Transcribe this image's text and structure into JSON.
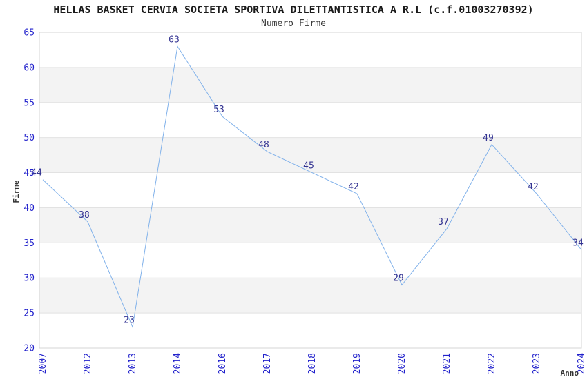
{
  "header": {
    "title": "HELLAS BASKET CERVIA SOCIETA SPORTIVA DILETTANTISTICA A R.L (c.f.01003270392)",
    "subtitle": "Numero Firme"
  },
  "axes": {
    "y_label": "Firme",
    "x_label": "Anno"
  },
  "chart_data": {
    "type": "line",
    "title": "HELLAS BASKET CERVIA SOCIETA SPORTIVA DILETTANTISTICA A R.L (c.f.01003270392)",
    "subtitle": "Numero Firme",
    "xlabel": "Anno",
    "ylabel": "Firme",
    "categories": [
      "2007",
      "2012",
      "2013",
      "2014",
      "2016",
      "2017",
      "2018",
      "2019",
      "2020",
      "2021",
      "2022",
      "2023",
      "2024"
    ],
    "values": [
      44,
      38,
      23,
      63,
      53,
      48,
      45,
      42,
      29,
      37,
      49,
      42,
      34
    ],
    "data_labels_visible": true,
    "ylim": [
      20,
      65
    ],
    "y_tick_step": 5,
    "y_ticks": [
      20,
      25,
      30,
      35,
      40,
      45,
      50,
      55,
      60,
      65
    ],
    "grid": true,
    "legend_position": "none",
    "shaded_bands": [
      [
        25,
        30
      ],
      [
        35,
        40
      ],
      [
        45,
        50
      ],
      [
        55,
        60
      ]
    ]
  },
  "colors": {
    "line": "#80b1ea",
    "tick_label": "#2222cc",
    "data_label": "#333392",
    "band_fill": "#f3f3f3",
    "grid_line": "#e2e2e2",
    "plot_border": "#d4d4d4",
    "title_text": "#1a1a1a",
    "axis_title_text": "#333333",
    "background": "#ffffff"
  }
}
